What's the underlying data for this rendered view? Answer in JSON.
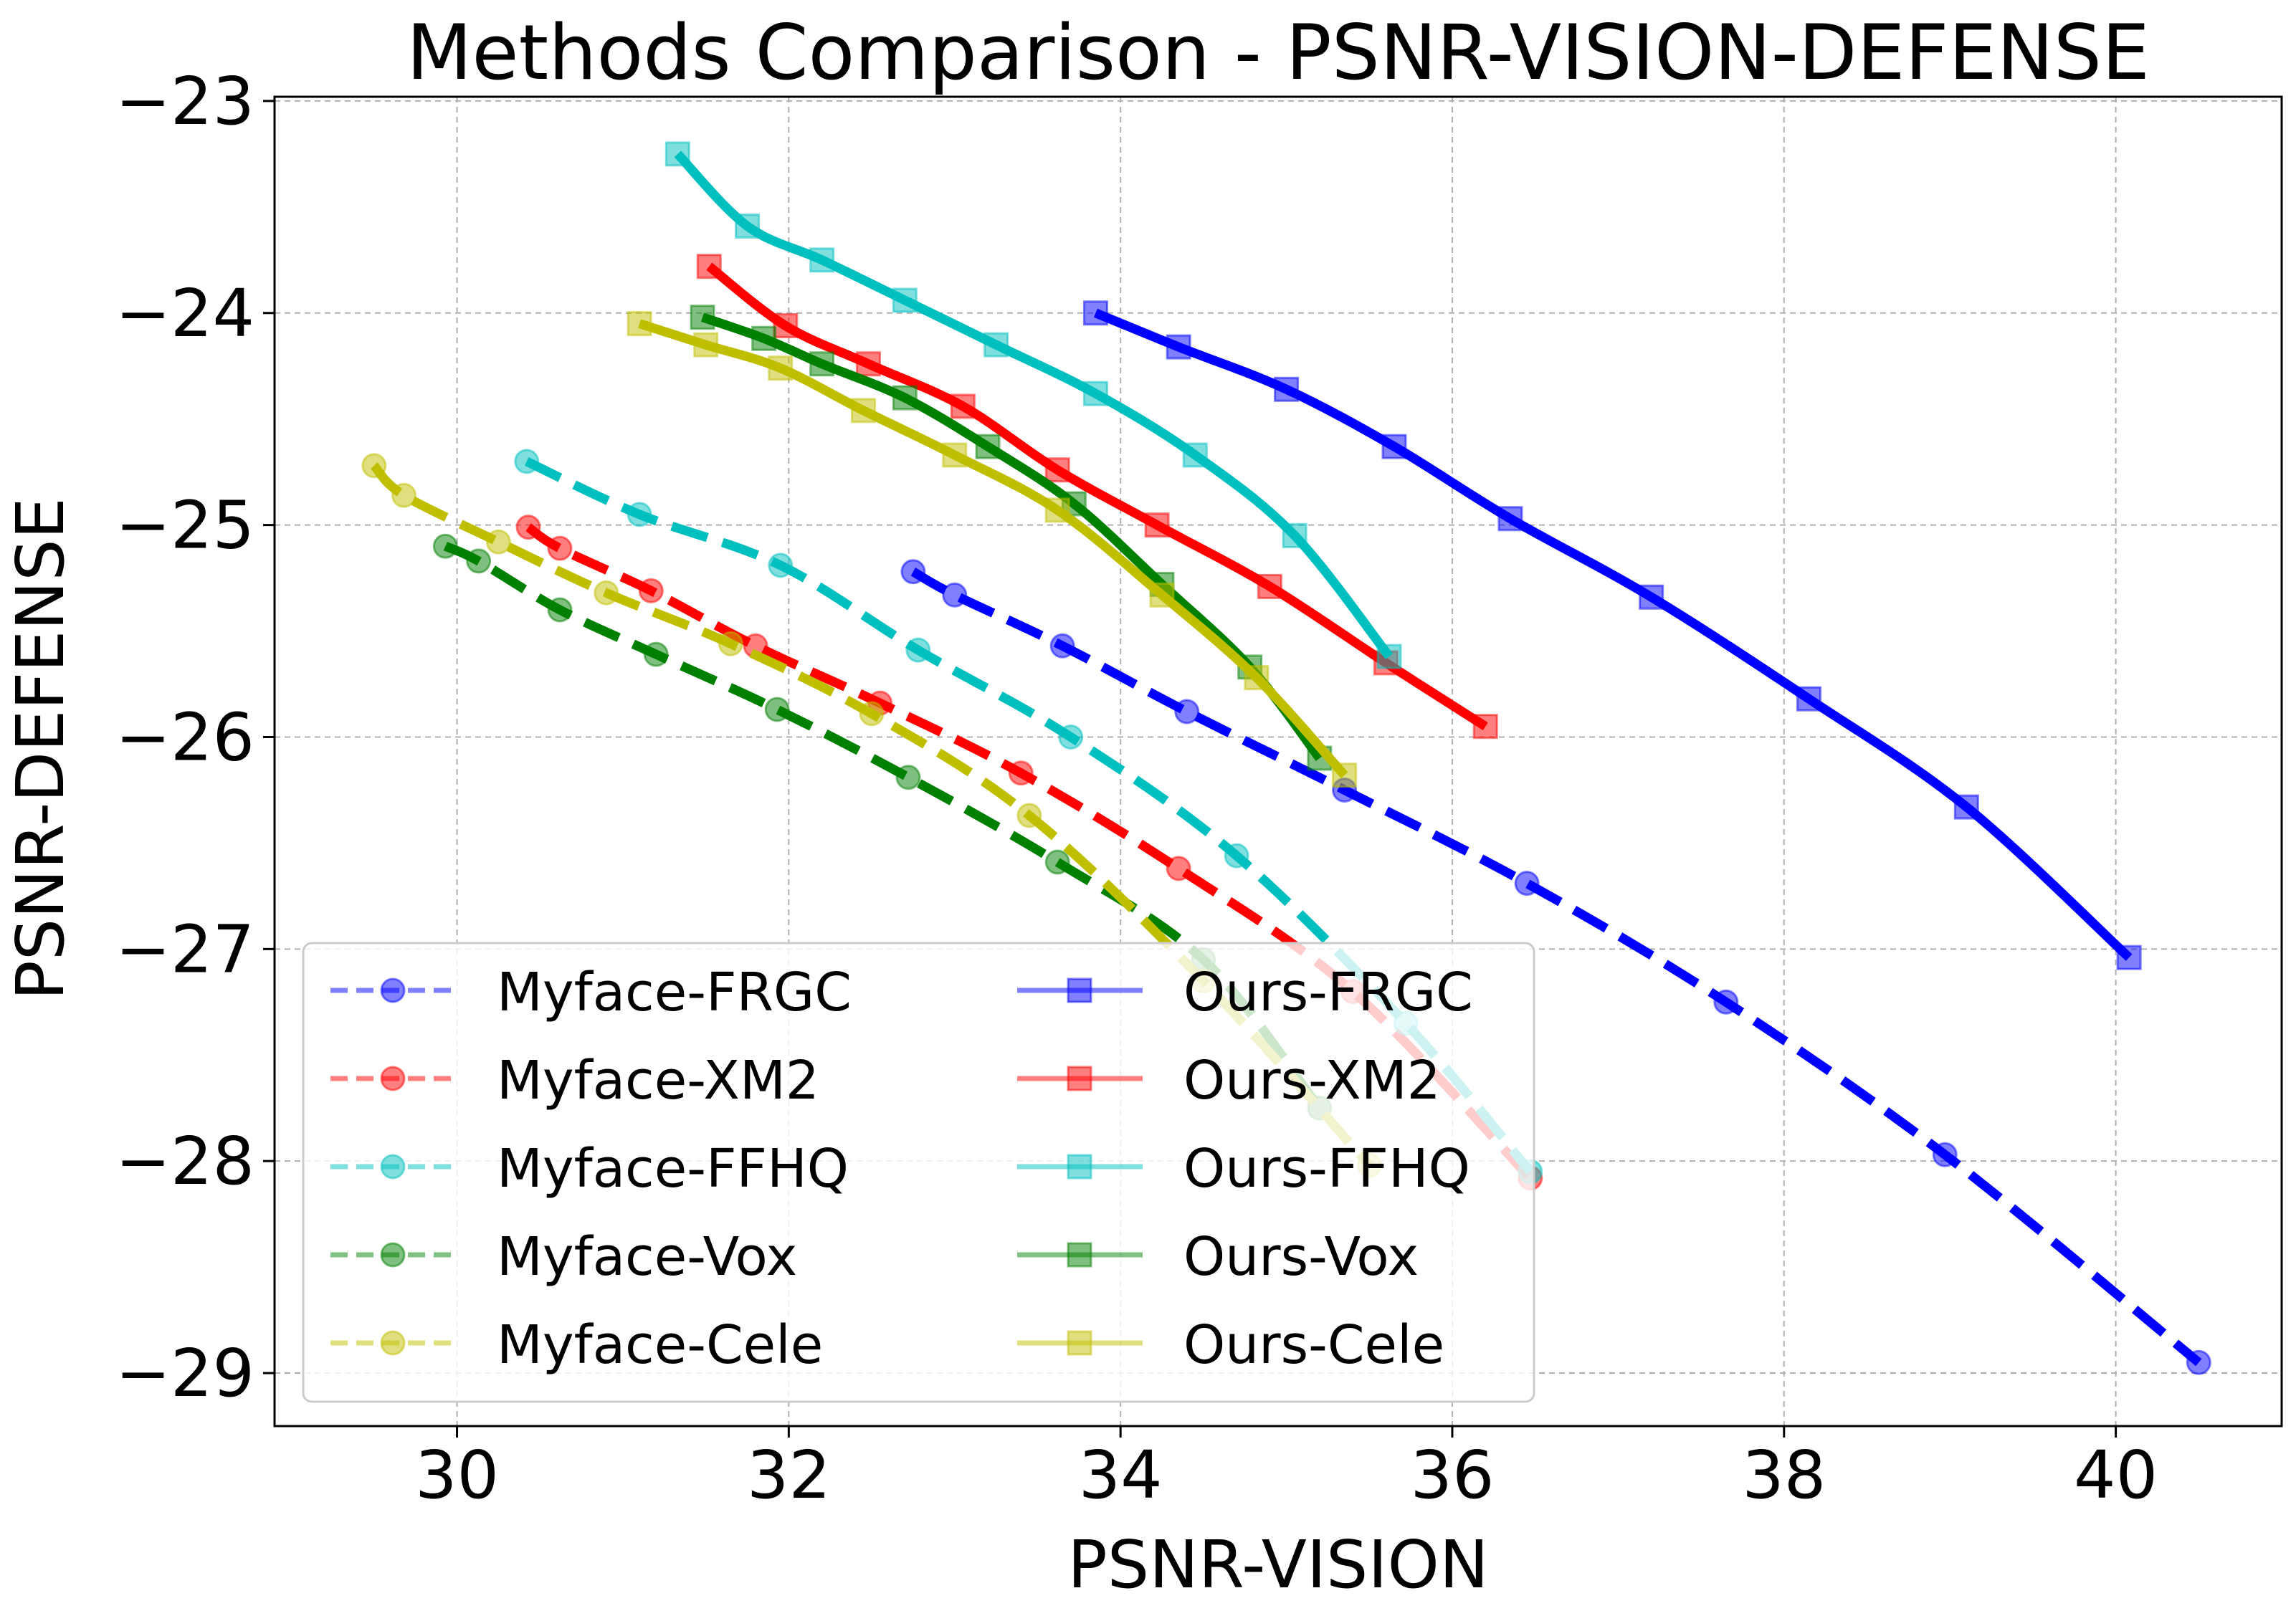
{
  "chart_data": {
    "type": "line",
    "title": "Methods Comparison - PSNR-VISION-DEFENSE",
    "xlabel": "PSNR-VISION",
    "ylabel": "PSNR-DEFENSE",
    "xlim": [
      28.9,
      41.0
    ],
    "ylim": [
      -29.25,
      -22.98
    ],
    "xticks": [
      30,
      32,
      34,
      36,
      38,
      40
    ],
    "yticks": [
      -29,
      -28,
      -27,
      -26,
      -25,
      -24,
      -23
    ],
    "xtick_labels": [
      "30",
      "32",
      "34",
      "36",
      "38",
      "40"
    ],
    "ytick_labels": [
      "−29",
      "−28",
      "−27",
      "−26",
      "−25",
      "−24",
      "−23"
    ],
    "grid": true,
    "legend": {
      "position": "lower-left",
      "columns": 2
    },
    "series": [
      {
        "name": "Myface-FRGC",
        "method": "Myface",
        "color": "#0000ff",
        "marker": "circle",
        "dashed": true,
        "x": [
          32.75,
          33.0,
          33.65,
          34.4,
          35.35,
          36.45,
          37.65,
          38.97,
          40.5
        ],
        "y": [
          -25.22,
          -25.33,
          -25.57,
          -25.88,
          -26.25,
          -26.69,
          -27.25,
          -27.97,
          -28.95
        ]
      },
      {
        "name": "Myface-XM2",
        "method": "Myface",
        "color": "#ff0000",
        "marker": "circle",
        "dashed": true,
        "x": [
          30.43,
          30.62,
          31.17,
          31.8,
          32.55,
          33.4,
          34.35,
          35.4,
          36.47
        ],
        "y": [
          -25.01,
          -25.11,
          -25.31,
          -25.57,
          -25.84,
          -26.17,
          -26.62,
          -27.2,
          -28.08
        ]
      },
      {
        "name": "Myface-FFHQ",
        "method": "Myface",
        "color": "#00bfbf",
        "marker": "circle",
        "dashed": true,
        "x": [
          30.42,
          31.1,
          31.95,
          32.78,
          33.7,
          34.7,
          35.72,
          36.47
        ],
        "y": [
          -24.7,
          -24.95,
          -25.19,
          -25.59,
          -26.0,
          -26.56,
          -27.35,
          -28.05
        ]
      },
      {
        "name": "Myface-Vox",
        "method": "Myface",
        "color": "#008000",
        "marker": "circle",
        "dashed": true,
        "x": [
          29.93,
          30.13,
          30.62,
          31.2,
          31.93,
          32.72,
          33.62,
          34.5,
          35.2
        ],
        "y": [
          -25.1,
          -25.17,
          -25.4,
          -25.61,
          -25.87,
          -26.19,
          -26.59,
          -27.05,
          -27.75
        ]
      },
      {
        "name": "Myface-Cele",
        "method": "Myface",
        "color": "#bfbf00",
        "marker": "circle",
        "dashed": true,
        "x": [
          29.5,
          29.68,
          30.25,
          30.9,
          31.65,
          32.5,
          33.45,
          34.5,
          35.5
        ],
        "y": [
          -24.72,
          -24.86,
          -25.08,
          -25.32,
          -25.56,
          -25.89,
          -26.37,
          -27.15,
          -28.02
        ]
      },
      {
        "name": "Ours-FRGC",
        "method": "Ours",
        "color": "#0000ff",
        "marker": "square",
        "dashed": false,
        "x": [
          33.85,
          34.35,
          35.0,
          35.65,
          36.35,
          37.2,
          38.15,
          39.1,
          40.08
        ],
        "y": [
          -24.0,
          -24.16,
          -24.36,
          -24.63,
          -24.97,
          -25.34,
          -25.82,
          -26.33,
          -27.04
        ]
      },
      {
        "name": "Ours-XM2",
        "method": "Ours",
        "color": "#ff0000",
        "marker": "square",
        "dashed": false,
        "x": [
          31.52,
          31.98,
          32.48,
          33.05,
          33.62,
          34.22,
          34.9,
          35.6,
          36.2
        ],
        "y": [
          -23.78,
          -24.06,
          -24.24,
          -24.44,
          -24.74,
          -25.0,
          -25.29,
          -25.65,
          -25.95
        ]
      },
      {
        "name": "Ours-FFHQ",
        "method": "Ours",
        "color": "#00bfbf",
        "marker": "square",
        "dashed": false,
        "x": [
          31.33,
          31.75,
          32.2,
          32.7,
          33.25,
          33.85,
          34.45,
          35.05,
          35.62
        ],
        "y": [
          -23.25,
          -23.59,
          -23.75,
          -23.94,
          -24.15,
          -24.38,
          -24.67,
          -25.05,
          -25.62
        ]
      },
      {
        "name": "Ours-Vox",
        "method": "Ours",
        "color": "#008000",
        "marker": "square",
        "dashed": false,
        "x": [
          31.48,
          31.85,
          32.2,
          32.7,
          33.2,
          33.72,
          34.25,
          34.78,
          35.2
        ],
        "y": [
          -24.02,
          -24.12,
          -24.24,
          -24.4,
          -24.63,
          -24.9,
          -25.28,
          -25.67,
          -26.1
        ]
      },
      {
        "name": "Ours-Cele",
        "method": "Ours",
        "color": "#bfbf00",
        "marker": "square",
        "dashed": false,
        "x": [
          31.1,
          31.5,
          31.95,
          32.45,
          33.0,
          33.62,
          34.25,
          34.82,
          35.35
        ],
        "y": [
          -24.05,
          -24.15,
          -24.26,
          -24.46,
          -24.67,
          -24.93,
          -25.33,
          -25.72,
          -26.18
        ]
      }
    ]
  }
}
